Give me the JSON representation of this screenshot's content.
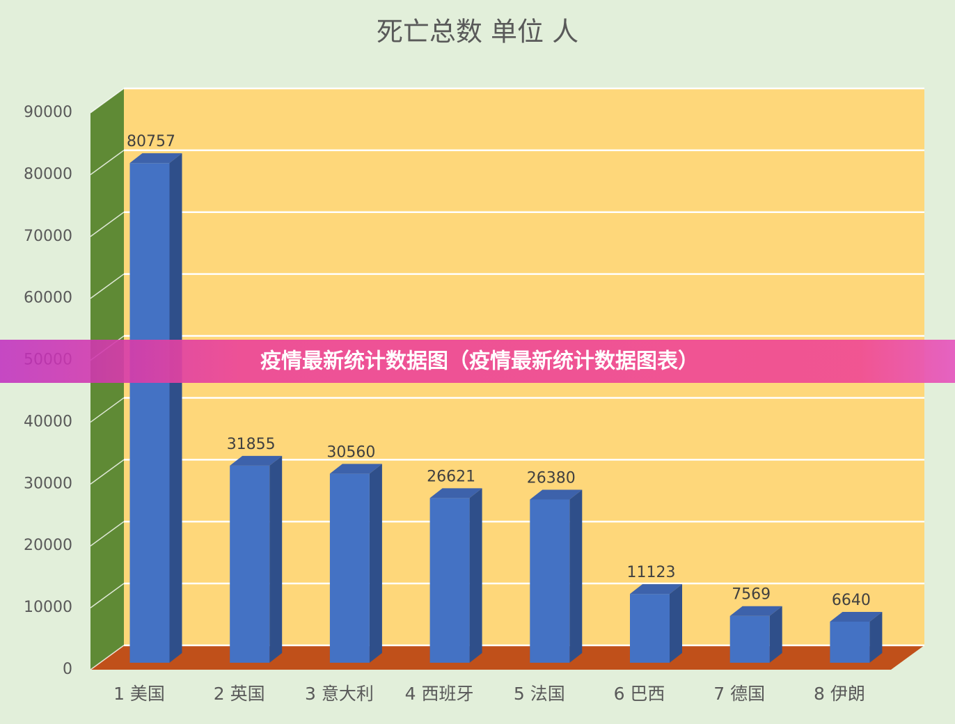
{
  "chart_data": {
    "type": "bar3d",
    "title": "死亡总数 单位 人",
    "categories": [
      "1 美国",
      "2 英国",
      "3 意大利",
      "4 西班牙",
      "5 法国",
      "6 巴西",
      "7 德国",
      "8 伊朗"
    ],
    "values": [
      80757,
      31855,
      30560,
      26621,
      26380,
      11123,
      7569,
      6640
    ],
    "color": "#4472c4",
    "ylim": [
      0,
      90000
    ],
    "yticks": [
      0,
      10000,
      20000,
      30000,
      40000,
      50000,
      60000,
      70000,
      80000,
      90000
    ],
    "grid": true
  },
  "banner": {
    "text": "疫情最新统计数据图（疫情最新统计数据图表）"
  }
}
